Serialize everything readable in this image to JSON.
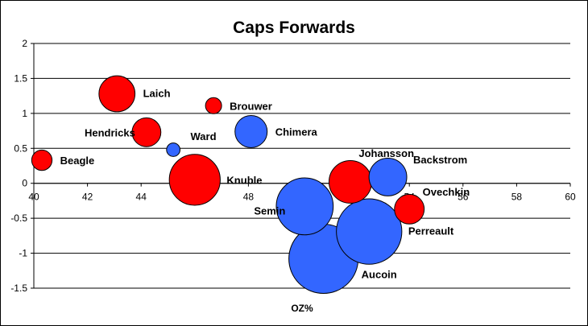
{
  "chart_data": {
    "type": "bubble",
    "title": "Caps Forwards",
    "xlabel": "OZ%",
    "ylabel": "",
    "xlim": [
      40,
      60
    ],
    "ylim": [
      -1.5,
      2
    ],
    "x_ticks": [
      40,
      42,
      44,
      46,
      48,
      50,
      52,
      54,
      56,
      58,
      60
    ],
    "y_ticks": [
      2,
      1.5,
      1,
      0.5,
      0,
      -0.5,
      -1,
      -1.5
    ],
    "grid": "horizontal",
    "legend": "none",
    "colors": {
      "positive": "#ff0000",
      "negative": "#3366ff",
      "outline": "#000000"
    },
    "points": [
      {
        "label": "Laich",
        "x": 43.1,
        "y": 1.28,
        "size": 5.0,
        "color": "positive"
      },
      {
        "label": "Brouwer",
        "x": 46.7,
        "y": 1.11,
        "size": 1.0,
        "color": "positive"
      },
      {
        "label": "Hendricks",
        "x": 44.2,
        "y": 0.73,
        "size": 3.2,
        "color": "positive"
      },
      {
        "label": "Ward",
        "x": 45.2,
        "y": 0.48,
        "size": 0.7,
        "color": "negative"
      },
      {
        "label": "Chimera",
        "x": 48.1,
        "y": 0.74,
        "size": 4.0,
        "color": "negative"
      },
      {
        "label": "Beagle",
        "x": 40.3,
        "y": 0.33,
        "size": 1.6,
        "color": "positive"
      },
      {
        "label": "Knuble",
        "x": 46.0,
        "y": 0.05,
        "size": 10.0,
        "color": "positive"
      },
      {
        "label": "Johansson",
        "x": 51.8,
        "y": 0.02,
        "size": 7.0,
        "color": "positive"
      },
      {
        "label": "Backstrom",
        "x": 53.2,
        "y": 0.09,
        "size": 5.5,
        "color": "negative"
      },
      {
        "label": "Ovechkin",
        "x": 54.0,
        "y": -0.37,
        "size": 3.4,
        "color": "positive"
      },
      {
        "label": "Semin",
        "x": 50.1,
        "y": -0.33,
        "size": 12.5,
        "color": "negative"
      },
      {
        "label": "Perreault",
        "x": 52.5,
        "y": -0.69,
        "size": 16.5,
        "color": "negative"
      },
      {
        "label": "Aucoin",
        "x": 50.8,
        "y": -1.08,
        "size": 18.5,
        "color": "negative"
      }
    ]
  }
}
